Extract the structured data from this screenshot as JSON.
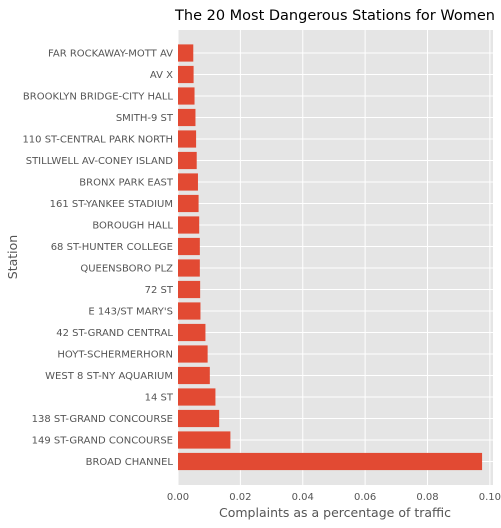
{
  "chart_data": {
    "type": "bar",
    "orientation": "horizontal",
    "title": "The 20 Most Dangerous Stations for Women",
    "xlabel": "Complaints as a percentage of traffic",
    "ylabel": "Station",
    "xlim": [
      0,
      0.101
    ],
    "xticks": [
      0.0,
      0.02,
      0.04,
      0.06,
      0.08,
      0.1
    ],
    "xtick_labels": [
      "0.00",
      "0.02",
      "0.04",
      "0.06",
      "0.08",
      "0.10"
    ],
    "grid": true,
    "bar_color": "#E24A33",
    "background_color": "#E5E5E5",
    "grid_color": "#FFFFFF",
    "categories": [
      "BROAD CHANNEL",
      "149 ST-GRAND CONCOURSE",
      "138 ST-GRAND CONCOURSE",
      "14 ST",
      "WEST 8 ST-NY AQUARIUM",
      "HOYT-SCHERMERHORN",
      "42 ST-GRAND CENTRAL",
      "E 143/ST MARY'S",
      "72 ST",
      "QUEENSBORO PLZ",
      "68 ST-HUNTER COLLEGE",
      "BOROUGH HALL",
      "161 ST-YANKEE STADIUM",
      "BRONX PARK EAST",
      "STILLWELL AV-CONEY ISLAND",
      "110 ST-CENTRAL PARK NORTH",
      "SMITH-9 ST",
      "BROOKLYN BRIDGE-CITY HALL",
      "AV X",
      "FAR ROCKAWAY-MOTT AV"
    ],
    "values": [
      0.0975,
      0.0168,
      0.0132,
      0.012,
      0.0102,
      0.0095,
      0.0088,
      0.0072,
      0.0071,
      0.007,
      0.007,
      0.0068,
      0.0066,
      0.0064,
      0.006,
      0.0058,
      0.0056,
      0.0053,
      0.005,
      0.0049
    ]
  }
}
